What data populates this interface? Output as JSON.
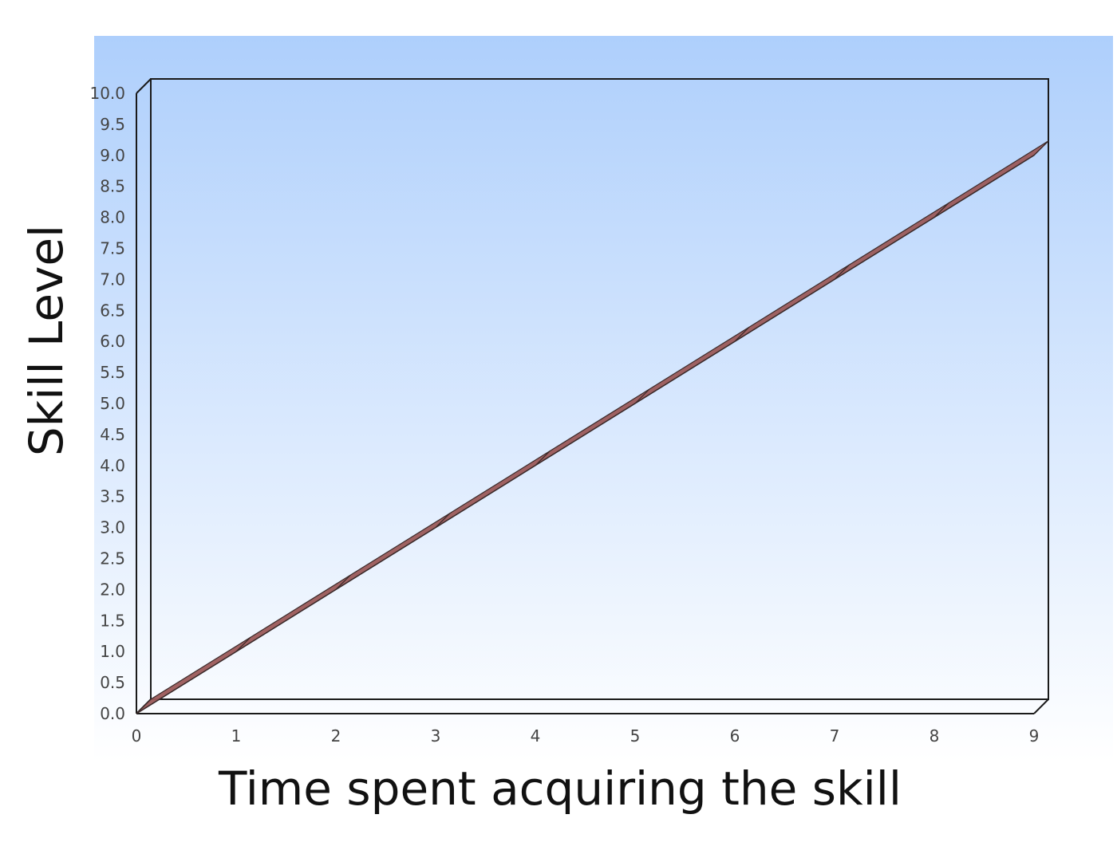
{
  "chart_data": {
    "type": "line",
    "title": "",
    "xlabel": "Time spent acquiring the skill",
    "ylabel": "Skill Level",
    "x": [
      0,
      1,
      2,
      3,
      4,
      5,
      6,
      7,
      8,
      9
    ],
    "series": [
      {
        "values": [
          0,
          1,
          2,
          3,
          4,
          5,
          6,
          7,
          8,
          9
        ],
        "color": "#9b5a5a"
      }
    ],
    "xlim": [
      0,
      9
    ],
    "ylim": [
      0,
      10
    ],
    "x_ticks": [
      "0",
      "1",
      "2",
      "3",
      "4",
      "5",
      "6",
      "7",
      "8",
      "9"
    ],
    "y_ticks": [
      "0.0",
      "0.5",
      "1.0",
      "1.5",
      "2.0",
      "2.5",
      "3.0",
      "3.5",
      "4.0",
      "4.5",
      "5.0",
      "5.5",
      "6.0",
      "6.5",
      "7.0",
      "7.5",
      "8.0",
      "8.5",
      "9.0",
      "9.5",
      "10.0"
    ],
    "grid": false,
    "legend": "none",
    "style": "3d",
    "background_gradient": [
      "#aecffc",
      "#ffffff"
    ]
  }
}
